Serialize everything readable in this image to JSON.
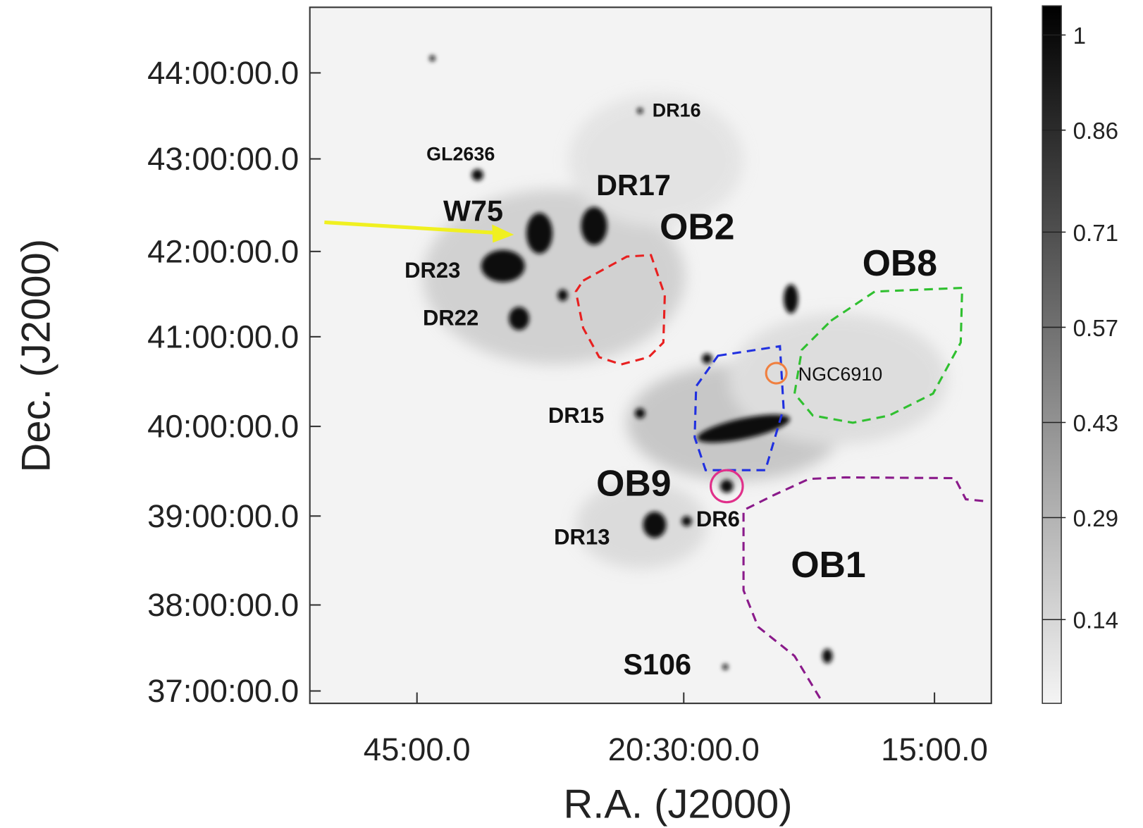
{
  "axes": {
    "x_label": "R.A. (J2000)",
    "y_label": "Dec. (J2000)",
    "x_ticks": [
      "45:00.0",
      "20:30:00.0",
      "15:00.0"
    ],
    "y_ticks": [
      "44:00:00.0",
      "43:00:00.0",
      "42:00:00.0",
      "41:00:00.0",
      "40:00:00.0",
      "39:00:00.0",
      "38:00:00.0",
      "37:00:00.0"
    ]
  },
  "colorbar": {
    "ticks": [
      1,
      0.86,
      0.71,
      0.57,
      0.43,
      0.29,
      0.14
    ]
  },
  "annotations": [
    "DR16",
    "GL2636",
    "DR17",
    "W75",
    "OB2",
    "DR23",
    "DR22",
    "OB8",
    "NGC6910",
    "DR15",
    "OB9",
    "DR6",
    "DR13",
    "OB1",
    "S106"
  ]
}
